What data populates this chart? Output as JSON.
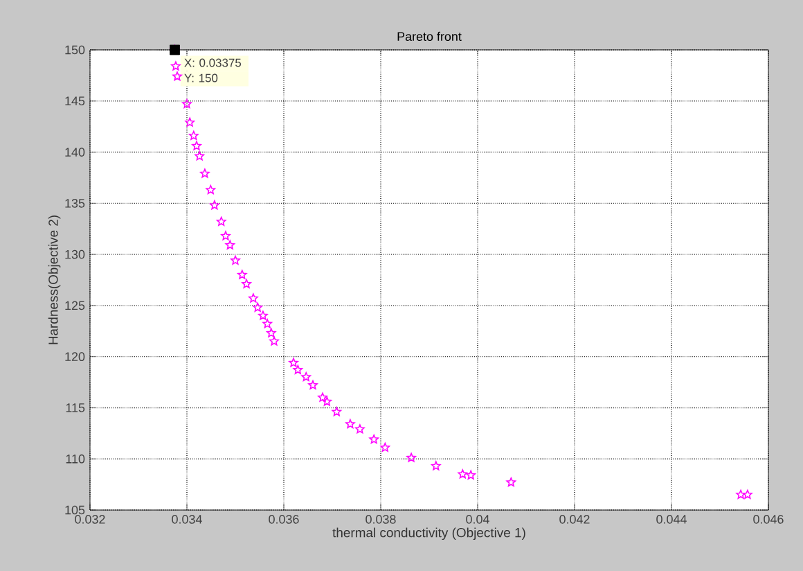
{
  "chart_data": {
    "type": "scatter",
    "title": "Pareto front",
    "xlabel": "thermal conductivity (Objective 1)",
    "ylabel": "Hardness(Objective 2)",
    "x": [
      0.03375,
      0.03377,
      0.0338,
      0.034,
      0.03406,
      0.03414,
      0.0342,
      0.03426,
      0.03437,
      0.03449,
      0.03457,
      0.03471,
      0.0348,
      0.03489,
      0.035,
      0.03514,
      0.03523,
      0.03537,
      0.03546,
      0.03557,
      0.03566,
      0.03574,
      0.0358,
      0.0362,
      0.03629,
      0.03646,
      0.0366,
      0.0368,
      0.03689,
      0.03709,
      0.03737,
      0.03757,
      0.03786,
      0.03809,
      0.03863,
      0.03914,
      0.03969,
      0.03986,
      0.04069,
      0.04543,
      0.04557
    ],
    "series": [
      {
        "color": "#ff00ff",
        "values": [
          150,
          148.4,
          147.4,
          144.7,
          142.9,
          141.6,
          140.6,
          139.6,
          137.9,
          136.3,
          134.8,
          133.2,
          131.8,
          130.9,
          129.4,
          128.0,
          127.1,
          125.7,
          124.8,
          124.0,
          123.2,
          122.3,
          121.5,
          119.4,
          118.7,
          118.0,
          117.2,
          116.0,
          115.6,
          114.6,
          113.4,
          112.9,
          111.9,
          111.1,
          110.1,
          109.3,
          108.5,
          108.4,
          107.7,
          106.5,
          106.5
        ]
      }
    ],
    "xlim": [
      0.032,
      0.046
    ],
    "xticks": [
      0.032,
      0.034,
      0.036,
      0.038,
      0.04,
      0.042,
      0.044,
      0.046
    ],
    "ylim": [
      105,
      150
    ],
    "yticks": [
      105,
      110,
      115,
      120,
      125,
      130,
      135,
      140,
      145,
      150
    ],
    "grid": true,
    "marker": "star",
    "annotations": [
      {
        "text": "X: 0.03375",
        "x": 0.03375,
        "y": 150
      },
      {
        "text": "Y: 150",
        "x": 0.03375,
        "y": 150
      }
    ]
  }
}
